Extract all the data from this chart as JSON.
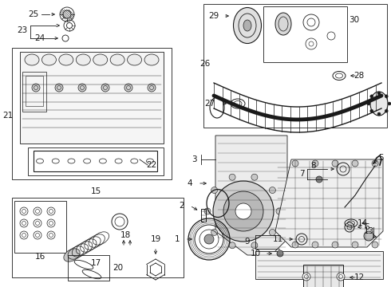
{
  "bg_color": "#ffffff",
  "line_color": "#1a1a1a",
  "fig_width": 4.9,
  "fig_height": 3.6,
  "dpi": 100,
  "fs": 7.5,
  "lw": 0.6
}
